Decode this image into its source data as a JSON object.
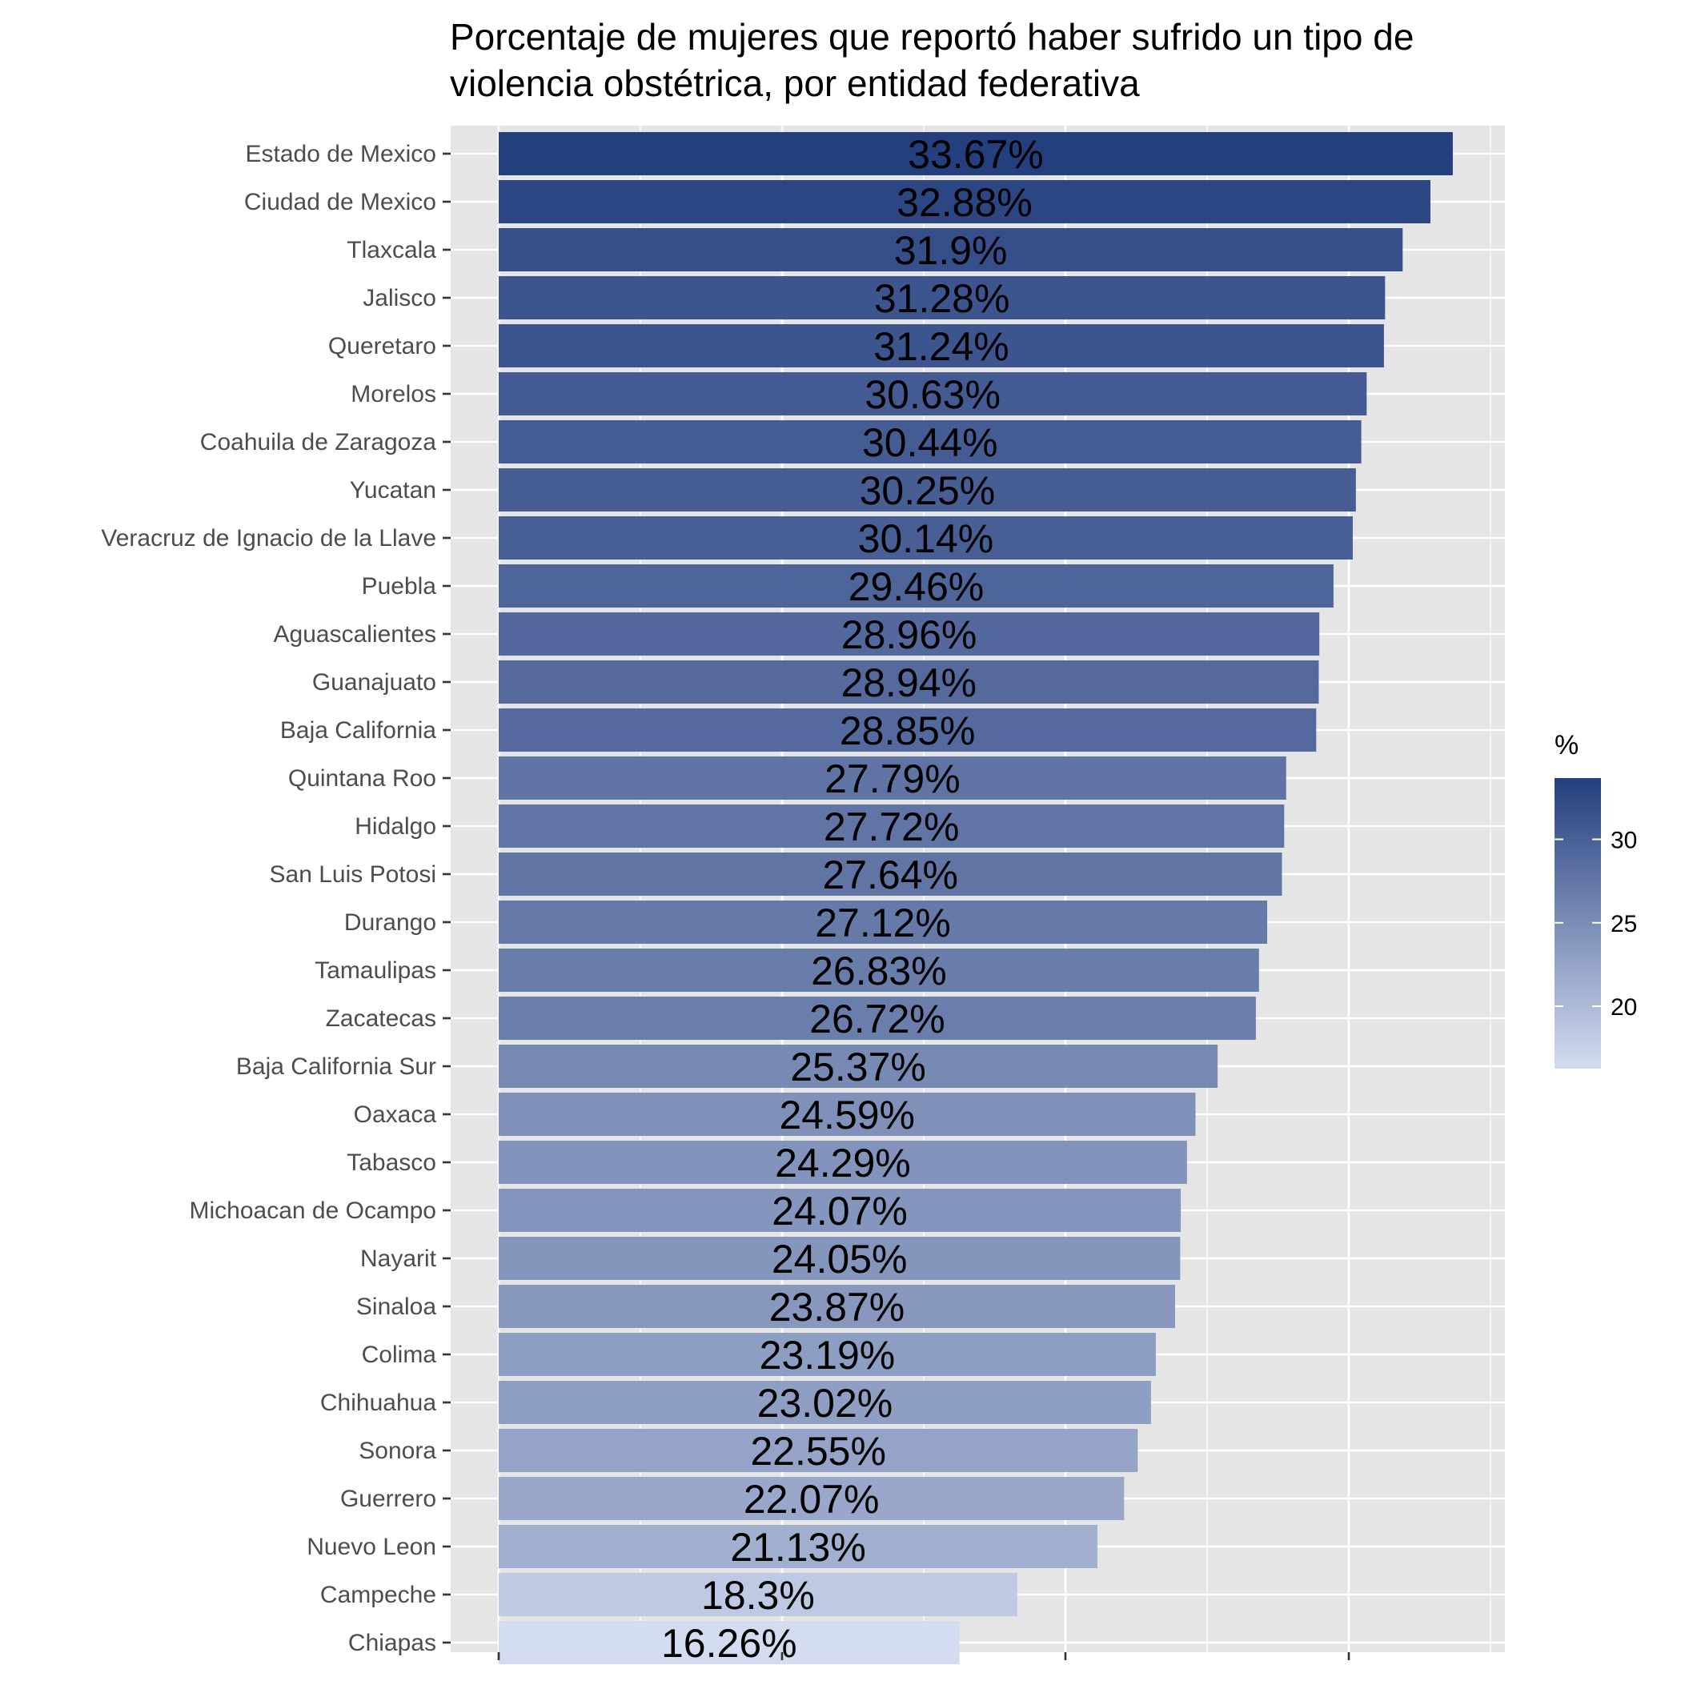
{
  "chart_data": {
    "type": "bar",
    "orientation": "horizontal",
    "title_lines": [
      "Porcentaje de mujeres que reportó haber sufrido un tipo de",
      "violencia obstétrica, por entidad federativa"
    ],
    "xlabel": "",
    "ylabel": "",
    "xlim": [
      0,
      35
    ],
    "grid": true,
    "categories": [
      "Estado de Mexico",
      "Ciudad de Mexico",
      "Tlaxcala",
      "Jalisco",
      "Queretaro",
      "Morelos",
      "Coahuila de Zaragoza",
      "Yucatan",
      "Veracruz de Ignacio de la Llave",
      "Puebla",
      "Aguascalientes",
      "Guanajuato",
      "Baja California",
      "Quintana Roo",
      "Hidalgo",
      "San Luis Potosi",
      "Durango",
      "Tamaulipas",
      "Zacatecas",
      "Baja California Sur",
      "Oaxaca",
      "Tabasco",
      "Michoacan de Ocampo",
      "Nayarit",
      "Sinaloa",
      "Colima",
      "Chihuahua",
      "Sonora",
      "Guerrero",
      "Nuevo Leon",
      "Campeche",
      "Chiapas"
    ],
    "values": [
      33.67,
      32.88,
      31.9,
      31.28,
      31.24,
      30.63,
      30.44,
      30.25,
      30.14,
      29.46,
      28.96,
      28.94,
      28.85,
      27.79,
      27.72,
      27.64,
      27.12,
      26.83,
      26.72,
      25.37,
      24.59,
      24.29,
      24.07,
      24.05,
      23.87,
      23.19,
      23.02,
      22.55,
      22.07,
      21.13,
      18.3,
      16.26
    ],
    "data_labels": [
      "33.67%",
      "32.88%",
      "31.9%",
      "31.28%",
      "31.24%",
      "30.63%",
      "30.44%",
      "30.25%",
      "30.14%",
      "29.46%",
      "28.96%",
      "28.94%",
      "28.85%",
      "27.79%",
      "27.72%",
      "27.64%",
      "27.12%",
      "26.83%",
      "26.72%",
      "25.37%",
      "24.59%",
      "24.29%",
      "24.07%",
      "24.05%",
      "23.87%",
      "23.19%",
      "23.02%",
      "22.55%",
      "22.07%",
      "21.13%",
      "18.3%",
      "16.26%"
    ],
    "legend": {
      "title": "%",
      "ticks": [
        "20",
        "25",
        "30"
      ],
      "tick_values": [
        20,
        25,
        30
      ],
      "range": [
        16.26,
        33.67
      ],
      "color_low": "#d3dcf0",
      "color_high": "#243f7e",
      "placement": "right"
    },
    "colors": {
      "panel_bg": "#e5e5e5",
      "grid": "#ffffff",
      "axis_ticks": "#333333"
    }
  }
}
